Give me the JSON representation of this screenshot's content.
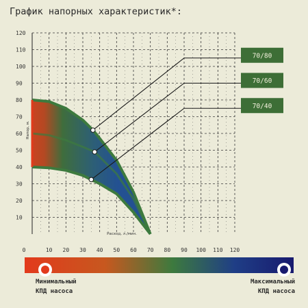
{
  "chart_data": {
    "type": "area",
    "title": "График напорных характеристик*:",
    "xlabel": "Расход, л./мин.",
    "ylabel": "Напор, м.",
    "xlim": [
      0,
      120
    ],
    "ylim": [
      0,
      120
    ],
    "x_ticks": [
      0,
      10,
      20,
      30,
      40,
      50,
      60,
      70,
      80,
      90,
      100,
      110,
      120
    ],
    "y_ticks": [
      10,
      20,
      30,
      40,
      50,
      60,
      70,
      80,
      90,
      100,
      110,
      120
    ],
    "grid": true,
    "series": [
      {
        "name": "70/80",
        "x": [
          0,
          10,
          20,
          30,
          36,
          40,
          50,
          60,
          70
        ],
        "y": [
          80,
          79,
          75,
          68,
          62,
          57,
          44,
          25,
          0
        ]
      },
      {
        "name": "70/60",
        "x": [
          0,
          10,
          20,
          30,
          37,
          40,
          50,
          60,
          70
        ],
        "y": [
          60,
          59,
          56,
          52,
          49,
          46,
          36,
          21,
          0
        ]
      },
      {
        "name": "70/40",
        "x": [
          0,
          10,
          20,
          30,
          35,
          40,
          50,
          60,
          70
        ],
        "y": [
          40,
          39.5,
          38,
          35,
          32.5,
          30,
          24,
          13,
          0
        ]
      }
    ],
    "markers": [
      {
        "series": "70/80",
        "x": 36,
        "y": 62,
        "elbow_x": 90,
        "elbow_y": 105
      },
      {
        "series": "70/60",
        "x": 37,
        "y": 49,
        "elbow_x": 90,
        "elbow_y": 90
      },
      {
        "series": "70/40",
        "x": 35,
        "y": 32.5,
        "elbow_x": 90,
        "elbow_y": 75
      }
    ],
    "colorbar": {
      "left_label_line1": "Минимальный",
      "left_label_line2": "КПД насоса",
      "right_label_line1": "Максимальный",
      "right_label_line2": "КПД насоса",
      "colors": [
        "#e23a1c",
        "#c7581f",
        "#3d7a3e",
        "#1f3e86",
        "#181a6e"
      ]
    },
    "colors": {
      "background": "#ecebd9",
      "grid": "#333333",
      "badge": "#3d6e36",
      "band_edge": "#3d7a3e",
      "band_red": "#e23a1c",
      "band_blue": "#1f4a9a"
    }
  }
}
